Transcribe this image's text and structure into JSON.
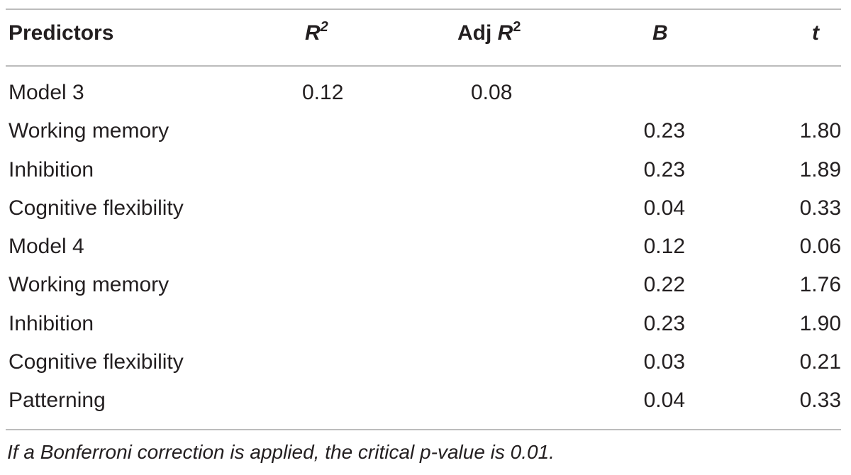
{
  "table": {
    "headers": {
      "predictors": "Predictors",
      "r2_base": "R",
      "r2_sup": "2",
      "adj_prefix": "Adj ",
      "adj_r": "R",
      "adj_sup": "2",
      "b": "B",
      "t": "t"
    },
    "rows": [
      {
        "predictor": "Model 3",
        "r2": "0.12",
        "adj_r2": "0.08",
        "b": "",
        "t": ""
      },
      {
        "predictor": "Working memory",
        "r2": "",
        "adj_r2": "",
        "b": "0.23",
        "t": "1.80"
      },
      {
        "predictor": "Inhibition",
        "r2": "",
        "adj_r2": "",
        "b": "0.23",
        "t": "1.89"
      },
      {
        "predictor": "Cognitive flexibility",
        "r2": "",
        "adj_r2": "",
        "b": "0.04",
        "t": "0.33"
      },
      {
        "predictor": "Model 4",
        "r2": "",
        "adj_r2": "",
        "b": "0.12",
        "t": "0.06"
      },
      {
        "predictor": "Working memory",
        "r2": "",
        "adj_r2": "",
        "b": "0.22",
        "t": "1.76"
      },
      {
        "predictor": "Inhibition",
        "r2": "",
        "adj_r2": "",
        "b": "0.23",
        "t": "1.90"
      },
      {
        "predictor": "Cognitive flexibility",
        "r2": "",
        "adj_r2": "",
        "b": "0.03",
        "t": "0.21"
      },
      {
        "predictor": "Patterning",
        "r2": "",
        "adj_r2": "",
        "b": "0.04",
        "t": "0.33"
      }
    ],
    "footnote": "If a Bonferroni correction is applied, the critical p-value is 0.01."
  }
}
